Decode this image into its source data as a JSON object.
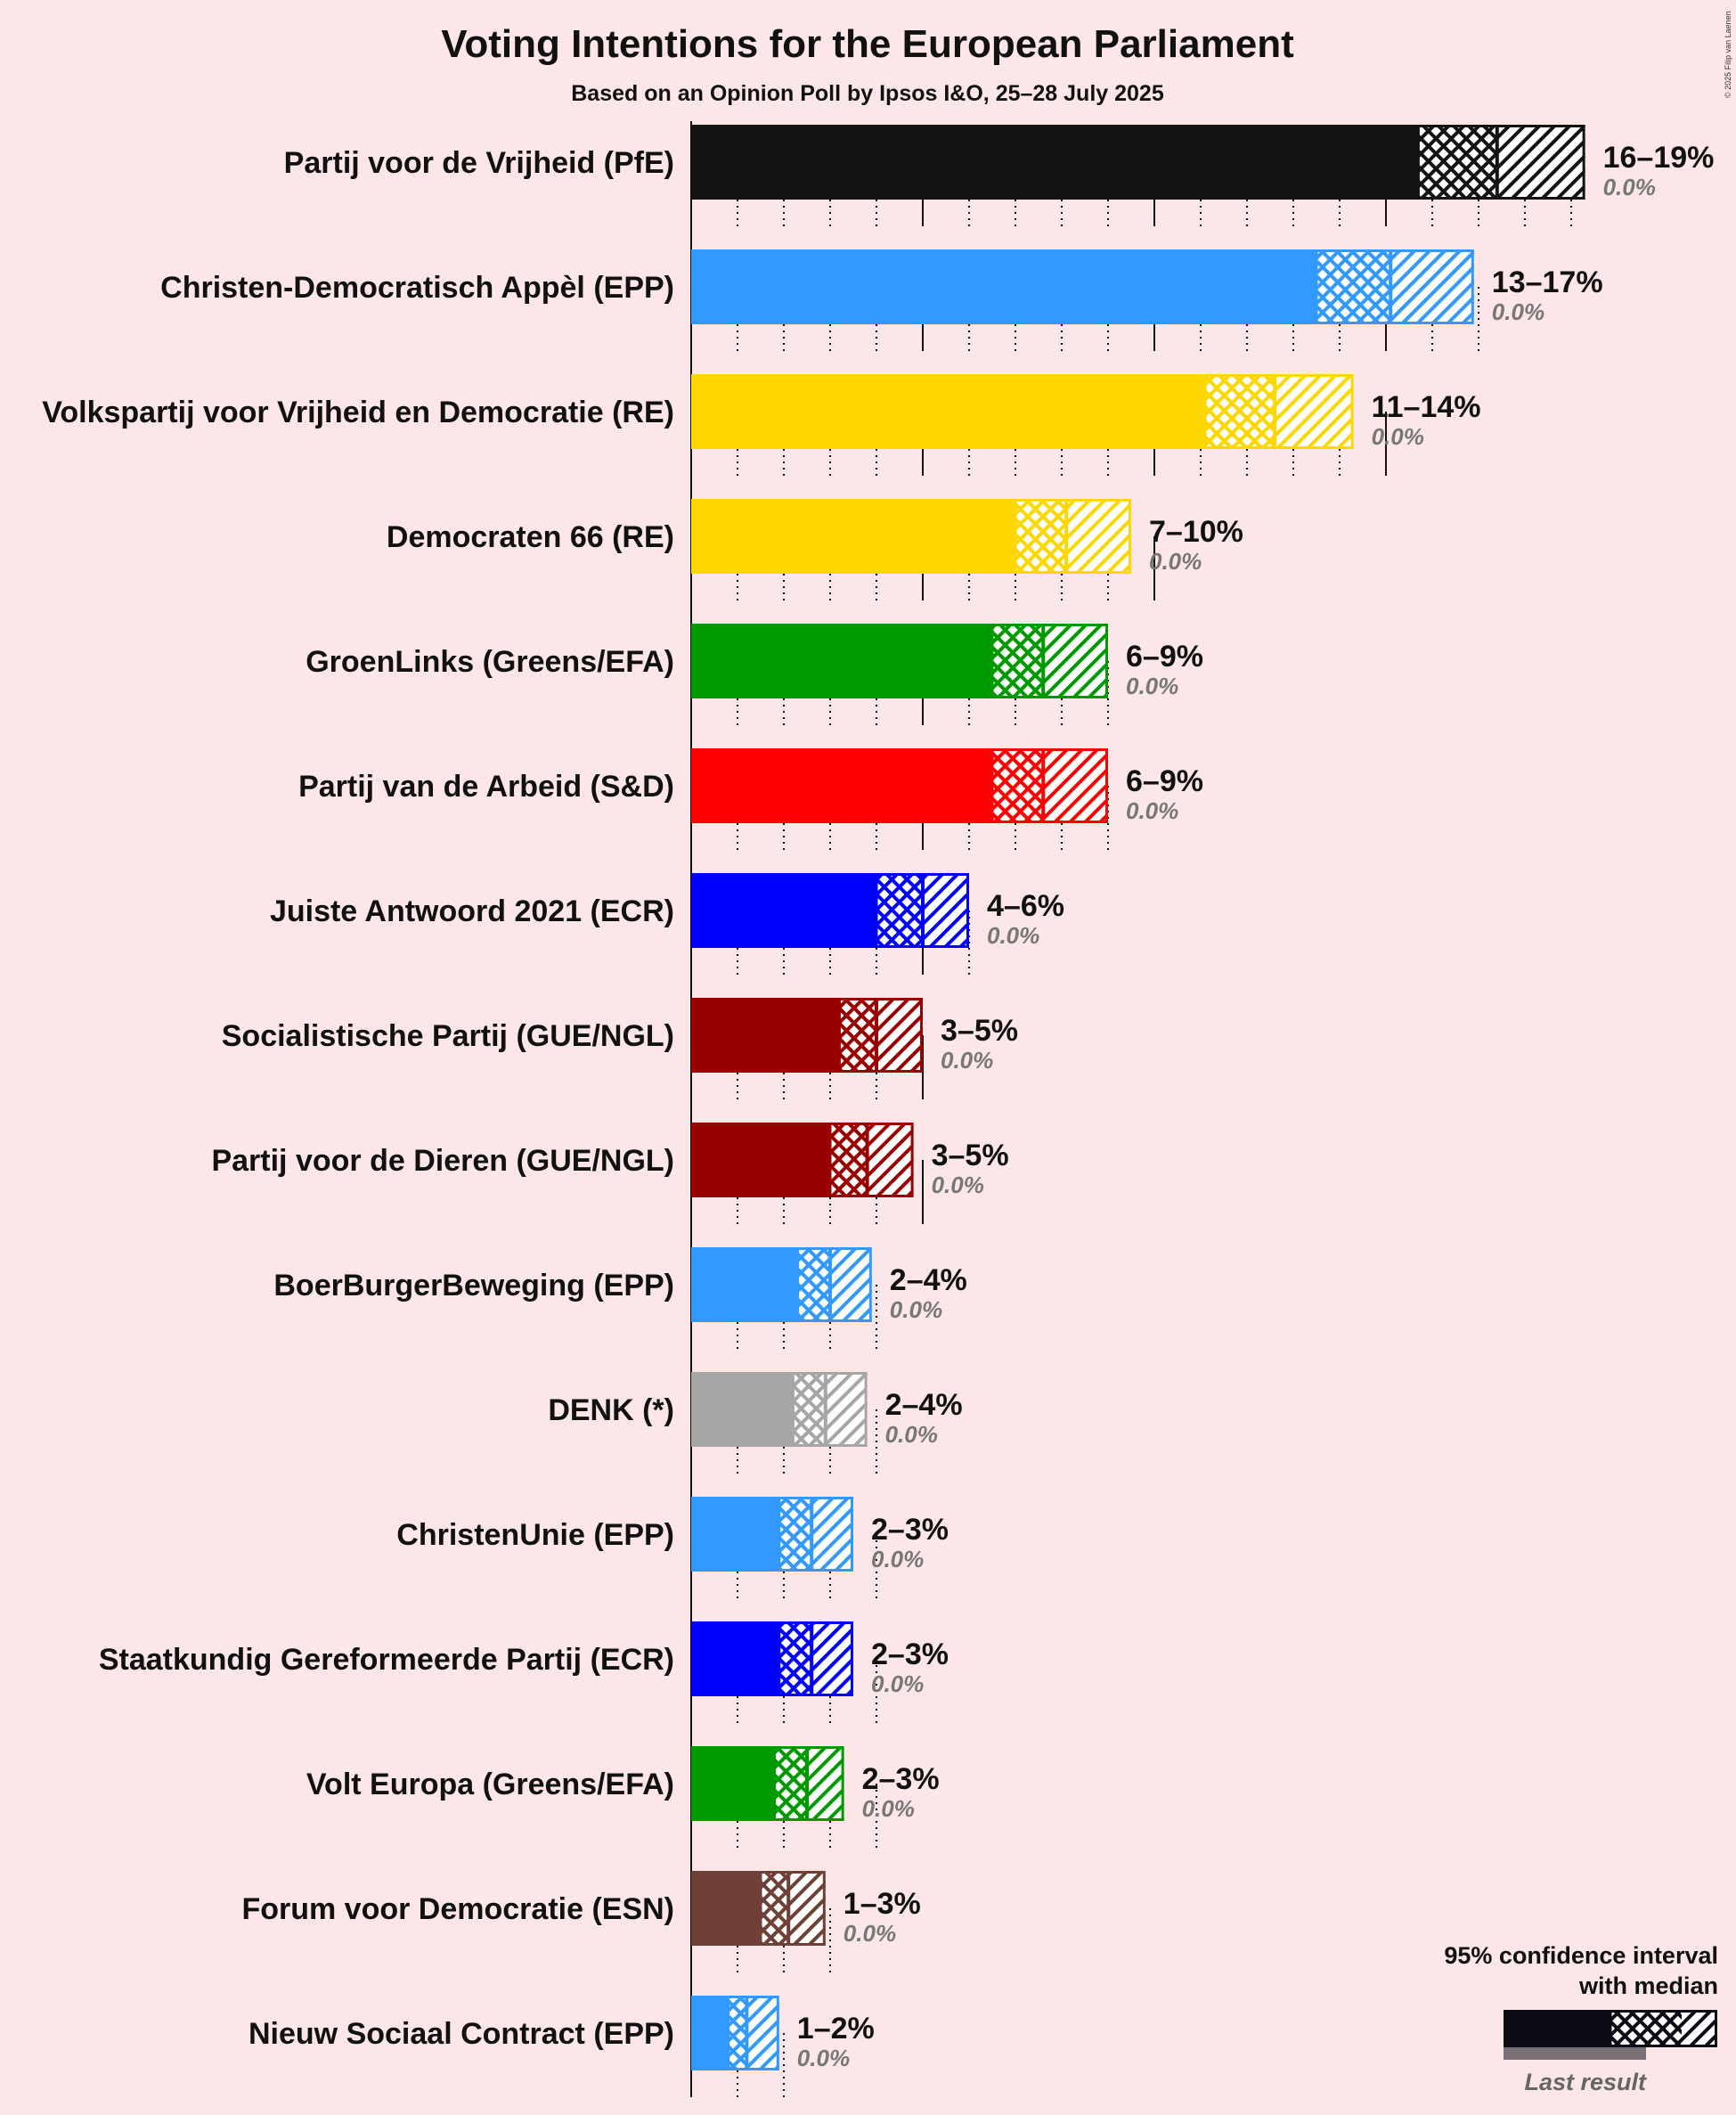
{
  "title": "Voting Intentions for the European Parliament",
  "subtitle": "Based on an Opinion Poll by Ipsos I&O, 25–28 July 2025",
  "copyright": "© 2025 Filip van Laenen",
  "legend": {
    "title_line1": "95% confidence interval",
    "title_line2": "with median",
    "last_result": "Last result",
    "color": "#0A0A14"
  },
  "chart_data": {
    "type": "bar",
    "orientation": "horizontal",
    "x_unit": "%",
    "x_major_ticks": [
      0,
      5,
      10,
      15
    ],
    "x_minor_ticks": [
      1,
      2,
      3,
      4,
      6,
      7,
      8,
      9,
      11,
      12,
      13,
      14,
      16,
      17,
      18,
      19
    ],
    "series": [
      {
        "name": "Partij voor de Vrijheid (PfE)",
        "color": "#131313",
        "low": 15.7,
        "median": 17.4,
        "high": 19.3,
        "range_label": "16–19%",
        "last_label": "0.0%",
        "last": 0.0
      },
      {
        "name": "Christen-Democratisch Appèl (EPP)",
        "color": "#3399FF",
        "low": 13.5,
        "median": 15.1,
        "high": 16.9,
        "range_label": "13–17%",
        "last_label": "0.0%",
        "last": 0.0
      },
      {
        "name": "Volkspartij voor Vrijheid en Democratie (RE)",
        "color": "#FFD700",
        "low": 11.1,
        "median": 12.6,
        "high": 14.3,
        "range_label": "11–14%",
        "last_label": "0.0%",
        "last": 0.0
      },
      {
        "name": "Democraten 66 (RE)",
        "color": "#FFD700",
        "low": 7.0,
        "median": 8.1,
        "high": 9.5,
        "range_label": "7–10%",
        "last_label": "0.0%",
        "last": 0.0
      },
      {
        "name": "GroenLinks (Greens/EFA)",
        "color": "#009900",
        "low": 6.5,
        "median": 7.6,
        "high": 9.0,
        "range_label": "6–9%",
        "last_label": "0.0%",
        "last": 0.0
      },
      {
        "name": "Partij van de Arbeid (S&D)",
        "color": "#FF0000",
        "low": 6.5,
        "median": 7.6,
        "high": 9.0,
        "range_label": "6–9%",
        "last_label": "0.0%",
        "last": 0.0
      },
      {
        "name": "Juiste Antwoord 2021 (ECR)",
        "color": "#0000FF",
        "low": 4.0,
        "median": 5.0,
        "high": 6.0,
        "range_label": "4–6%",
        "last_label": "0.0%",
        "last": 0.0
      },
      {
        "name": "Socialistische Partij (GUE/NGL)",
        "color": "#990000",
        "low": 3.2,
        "median": 4.0,
        "high": 5.0,
        "range_label": "3–5%",
        "last_label": "0.0%",
        "last": 0.0
      },
      {
        "name": "Partij voor de Dieren (GUE/NGL)",
        "color": "#990000",
        "low": 3.0,
        "median": 3.8,
        "high": 4.8,
        "range_label": "3–5%",
        "last_label": "0.0%",
        "last": 0.0
      },
      {
        "name": "BoerBurgerBeweging (EPP)",
        "color": "#3399FF",
        "low": 2.3,
        "median": 3.0,
        "high": 3.9,
        "range_label": "2–4%",
        "last_label": "0.0%",
        "last": 0.0
      },
      {
        "name": "DENK (*)",
        "color": "#A6A6A6",
        "low": 2.2,
        "median": 2.9,
        "high": 3.8,
        "range_label": "2–4%",
        "last_label": "0.0%",
        "last": 0.0
      },
      {
        "name": "ChristenUnie (EPP)",
        "color": "#3399FF",
        "low": 1.9,
        "median": 2.6,
        "high": 3.5,
        "range_label": "2–3%",
        "last_label": "0.0%",
        "last": 0.0
      },
      {
        "name": "Staatkundig Gereformeerde Partij (ECR)",
        "color": "#0000FF",
        "low": 1.9,
        "median": 2.6,
        "high": 3.5,
        "range_label": "2–3%",
        "last_label": "0.0%",
        "last": 0.0
      },
      {
        "name": "Volt Europa (Greens/EFA)",
        "color": "#009900",
        "low": 1.8,
        "median": 2.5,
        "high": 3.3,
        "range_label": "2–3%",
        "last_label": "0.0%",
        "last": 0.0
      },
      {
        "name": "Forum voor Democratie (ESN)",
        "color": "#6E4037",
        "low": 1.5,
        "median": 2.1,
        "high": 2.9,
        "range_label": "1–3%",
        "last_label": "0.0%",
        "last": 0.0
      },
      {
        "name": "Nieuw Sociaal Contract (EPP)",
        "color": "#3399FF",
        "low": 0.8,
        "median": 1.2,
        "high": 1.9,
        "range_label": "1–2%",
        "last_label": "0.0%",
        "last": 0.0
      }
    ]
  }
}
